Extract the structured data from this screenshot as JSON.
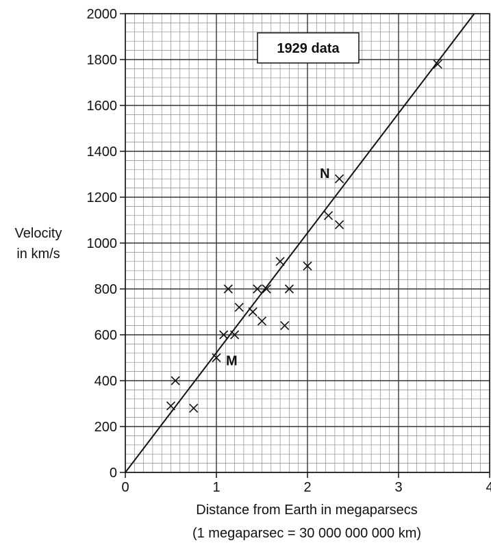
{
  "chart_data": {
    "type": "scatter",
    "title": "1929 data",
    "ylabel_lines": [
      "Velocity",
      "in km/s"
    ],
    "xlabel": "Distance from Earth in megaparsecs",
    "xlabel_note": "(1 megaparsec = 30 000 000 000 km)",
    "xlim": [
      0,
      4
    ],
    "ylim": [
      0,
      2000
    ],
    "x_ticks": [
      0,
      1,
      2,
      3,
      4
    ],
    "x_tick_labels": [
      "0",
      "1",
      "2",
      "3",
      "4"
    ],
    "y_ticks": [
      0,
      200,
      400,
      600,
      800,
      1000,
      1200,
      1400,
      1600,
      1800,
      2000
    ],
    "y_tick_labels": [
      "0",
      "200",
      "400",
      "600",
      "800",
      "1000",
      "1200",
      "1400",
      "1600",
      "1800",
      "2000"
    ],
    "grid": true,
    "minor_grid_step_x": 0.1,
    "minor_grid_step_y": 40,
    "marker": "x",
    "points": [
      {
        "x": 0.5,
        "y": 290
      },
      {
        "x": 0.55,
        "y": 400
      },
      {
        "x": 0.75,
        "y": 280
      },
      {
        "x": 1.0,
        "y": 500,
        "label": "M"
      },
      {
        "x": 1.08,
        "y": 600
      },
      {
        "x": 1.13,
        "y": 800
      },
      {
        "x": 1.2,
        "y": 600
      },
      {
        "x": 1.25,
        "y": 720
      },
      {
        "x": 1.4,
        "y": 700
      },
      {
        "x": 1.45,
        "y": 800
      },
      {
        "x": 1.5,
        "y": 660
      },
      {
        "x": 1.55,
        "y": 800
      },
      {
        "x": 1.7,
        "y": 920
      },
      {
        "x": 1.75,
        "y": 640
      },
      {
        "x": 1.8,
        "y": 800
      },
      {
        "x": 2.0,
        "y": 900
      },
      {
        "x": 2.23,
        "y": 1120
      },
      {
        "x": 2.35,
        "y": 1080
      },
      {
        "x": 2.35,
        "y": 1280,
        "label": "N"
      },
      {
        "x": 3.43,
        "y": 1780
      }
    ],
    "fit_line": {
      "x0": 0,
      "y0": 0,
      "slope": 522
    }
  }
}
